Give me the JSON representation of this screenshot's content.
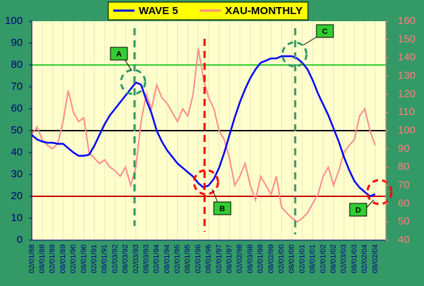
{
  "chart_data": {
    "type": "line",
    "categories": [
      "02/01/88",
      null,
      "08/01/88",
      null,
      "02/01/89",
      null,
      "08/01/89",
      null,
      "02/01/90",
      null,
      "08/01/90",
      null,
      "02/01/91",
      null,
      "08/01/91",
      null,
      "02/03/92",
      null,
      "08/03/92",
      null,
      "02/03/93",
      null,
      "08/03/93",
      null,
      "02/01/94",
      null,
      "08/01/94",
      null,
      "02/01/95",
      null,
      "08/01/95",
      null,
      "02/01/96",
      null,
      "08/01/96",
      null,
      "02/01/97",
      null,
      "08/01/97",
      null,
      "02/02/98",
      null,
      "08/03/98",
      null,
      "02/01/99",
      null,
      "08/02/99",
      null,
      "02/01/00",
      null,
      "08/01/00",
      null,
      "02/01/01",
      null,
      "08/01/01",
      null,
      "02/01/02",
      null,
      "08/01/02",
      null,
      "02/03/03",
      null,
      "08/01/03",
      null,
      "02/02/04",
      null,
      "08/02/04"
    ],
    "series": [
      {
        "name": "WAVE 5",
        "color": "#0000ff",
        "axis": "y",
        "values": [
          48,
          46,
          45,
          44.5,
          44.5,
          44,
          44,
          42,
          40,
          38.5,
          38.5,
          39,
          43,
          48,
          53,
          57,
          60,
          63,
          66,
          69,
          72,
          71,
          64,
          58,
          50,
          45,
          41,
          38,
          35,
          33,
          31,
          29,
          26,
          24,
          25,
          28,
          33,
          40,
          48,
          56,
          63,
          69,
          74,
          78,
          81,
          82,
          83,
          83,
          84,
          84,
          84,
          83,
          81,
          78,
          73,
          67,
          62,
          57,
          51,
          45,
          38,
          32,
          27,
          24,
          22,
          20,
          21
        ]
      },
      {
        "name": "XAU-MONTHLY",
        "color": "#ff8c8c",
        "axis": "y2",
        "values": [
          98,
          102,
          95,
          92,
          90,
          93,
          105,
          122,
          110,
          105,
          107,
          88,
          85,
          82,
          84,
          80,
          78,
          75,
          80,
          70,
          80,
          105,
          120,
          112,
          125,
          118,
          115,
          110,
          105,
          112,
          108,
          120,
          145,
          128,
          118,
          112,
          100,
          95,
          85,
          70,
          75,
          82,
          70,
          62,
          75,
          70,
          65,
          75,
          58,
          55,
          52,
          50,
          52,
          55,
          60,
          65,
          75,
          80,
          70,
          78,
          88,
          92,
          95,
          108,
          112,
          100,
          92
        ]
      }
    ],
    "ylim": [
      0,
      100
    ],
    "yticks": [
      0,
      10,
      20,
      30,
      40,
      50,
      60,
      70,
      80,
      90,
      100
    ],
    "y2lim": [
      40,
      160
    ],
    "y2ticks": [
      40,
      50,
      60,
      70,
      80,
      90,
      100,
      110,
      120,
      130,
      140,
      150,
      160
    ],
    "hlines": [
      {
        "value": 80,
        "color": "#33cc33"
      },
      {
        "value": 50,
        "color": "#000000"
      },
      {
        "value": 20,
        "color": "#cc0000"
      }
    ],
    "annotations": [
      "A",
      "B",
      "C",
      "D"
    ]
  }
}
